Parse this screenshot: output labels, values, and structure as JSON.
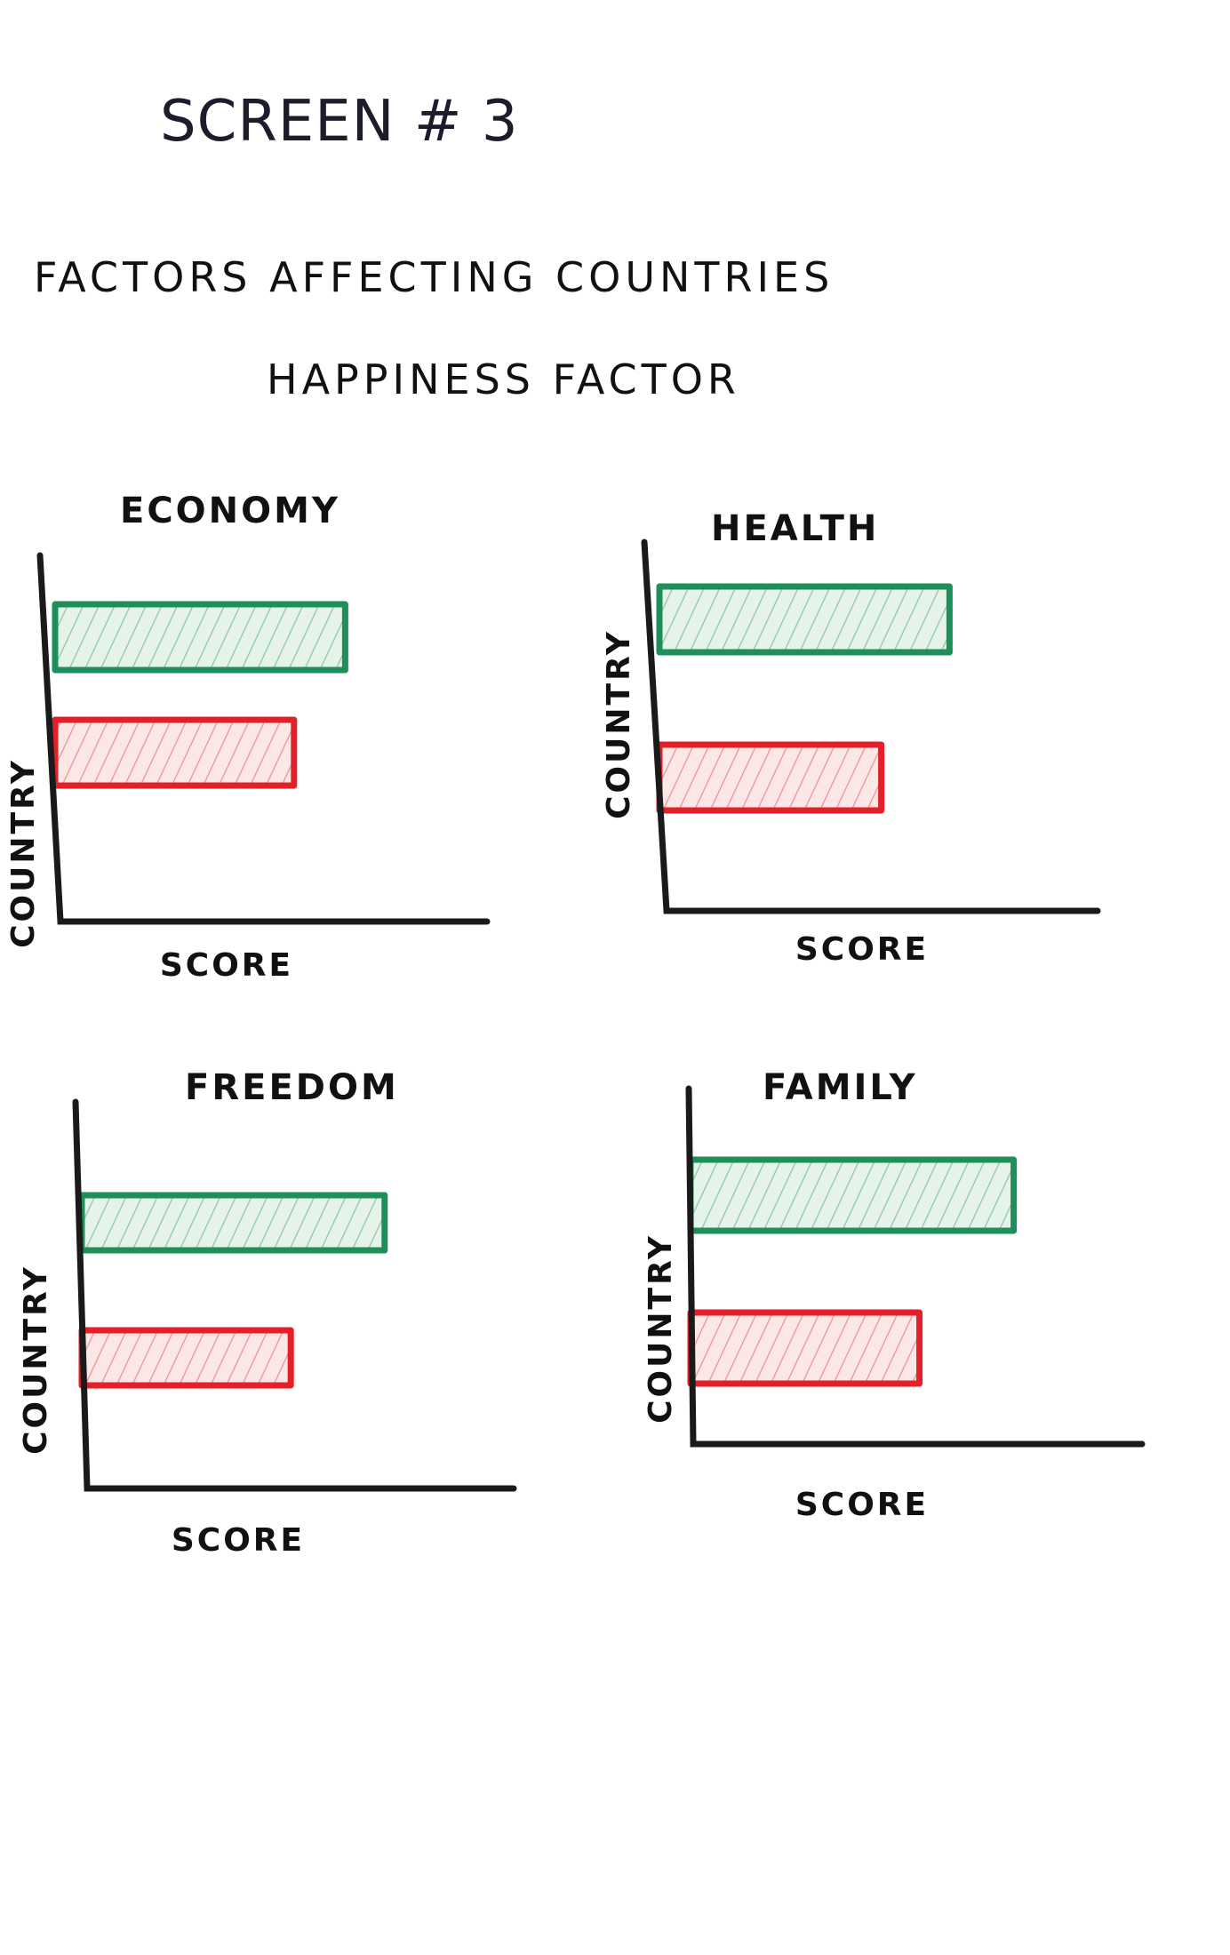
{
  "header": {
    "screen_title": "Screen # 3",
    "heading_line1": "Factors affecting countries",
    "heading_line2": "Happiness factor"
  },
  "colors": {
    "ink": "#111111",
    "green": "#1f8f5a",
    "green_fill": "#cfe9d6",
    "red": "#e3202a",
    "red_fill": "#f8d3cf"
  },
  "chart_data": [
    {
      "type": "bar",
      "orientation": "horizontal",
      "title": "Economy",
      "xlabel": "Score",
      "ylabel": "Country",
      "series": [
        {
          "color": "#1f8f5a",
          "values": [
            0.68
          ]
        },
        {
          "color": "#e3202a",
          "values": [
            0.56
          ]
        }
      ]
    },
    {
      "type": "bar",
      "orientation": "horizontal",
      "title": "Health",
      "xlabel": "Score",
      "ylabel": "Country",
      "series": [
        {
          "color": "#1f8f5a",
          "values": [
            0.68
          ]
        },
        {
          "color": "#e3202a",
          "values": [
            0.52
          ]
        }
      ]
    },
    {
      "type": "bar",
      "orientation": "horizontal",
      "title": "Freedom",
      "xlabel": "Score",
      "ylabel": "Country",
      "series": [
        {
          "color": "#1f8f5a",
          "values": [
            0.71
          ]
        },
        {
          "color": "#e3202a",
          "values": [
            0.49
          ]
        }
      ]
    },
    {
      "type": "bar",
      "orientation": "horizontal",
      "title": "Family",
      "xlabel": "Score",
      "ylabel": "Country",
      "series": [
        {
          "color": "#1f8f5a",
          "values": [
            0.72
          ]
        },
        {
          "color": "#e3202a",
          "values": [
            0.51
          ]
        }
      ]
    }
  ]
}
